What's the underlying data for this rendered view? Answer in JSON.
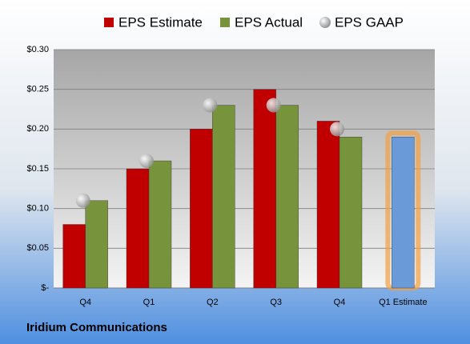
{
  "chart_data": {
    "type": "bar",
    "title": "Iridium Communications",
    "categories": [
      "Q4",
      "Q1",
      "Q2",
      "Q3",
      "Q4",
      "Q1 Estimate"
    ],
    "series": [
      {
        "name": "EPS Estimate",
        "color": "#c00000",
        "colors": [
          "#c00000",
          "#c00000",
          "#c00000",
          "#c00000",
          "#c00000",
          "#6a9bd8"
        ],
        "values": [
          0.08,
          0.15,
          0.2,
          0.25,
          0.21,
          0.19
        ]
      },
      {
        "name": "EPS Actual",
        "color": "#77933c",
        "values": [
          0.11,
          0.16,
          0.23,
          0.23,
          0.19,
          null
        ]
      },
      {
        "name": "EPS GAAP",
        "color": "#a6a6a6",
        "marker": "circle",
        "values": [
          0.11,
          0.16,
          0.23,
          0.23,
          0.2,
          null
        ]
      }
    ],
    "ylim": [
      0,
      0.3
    ],
    "yticks": [
      {
        "value": 0,
        "label": "$-"
      },
      {
        "value": 0.05,
        "label": "$0.05"
      },
      {
        "value": 0.1,
        "label": "$0.10"
      },
      {
        "value": 0.15,
        "label": "$0.15"
      },
      {
        "value": 0.2,
        "label": "$0.20"
      },
      {
        "value": 0.25,
        "label": "$0.25"
      },
      {
        "value": 0.3,
        "label": "$0.30"
      }
    ],
    "grid": true,
    "legend": "top"
  }
}
